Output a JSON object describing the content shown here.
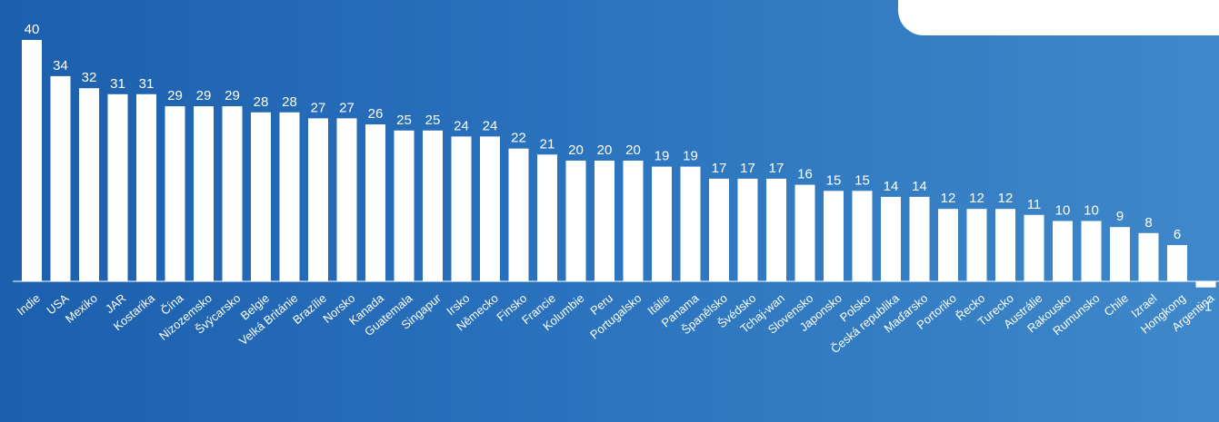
{
  "colors": {
    "background": "#2a72bd",
    "bars": "#ffffff"
  },
  "chart_data": {
    "type": "bar",
    "title": "",
    "xlabel": "",
    "ylabel": "",
    "grid": false,
    "ylim": [
      -1,
      40
    ],
    "categories": [
      "Indie",
      "USA",
      "Mexiko",
      "JAR",
      "Kostarika",
      "Čína",
      "Nizozemsko",
      "Švýcarsko",
      "Belgie",
      "Velká Británie",
      "Brazílie",
      "Norsko",
      "Kanada",
      "Guatemala",
      "Singapur",
      "Irsko",
      "Německo",
      "Finsko",
      "Francie",
      "Kolumbie",
      "Peru",
      "Portugalsko",
      "Itálie",
      "Panama",
      "Španělsko",
      "Švédsko",
      "Tchaj-wan",
      "Slovensko",
      "Japonsko",
      "Polsko",
      "Česká republika",
      "Maďarsko",
      "Portoriko",
      "Řecko",
      "Turecko",
      "Austrálie",
      "Rakousko",
      "Rumunsko",
      "Chile",
      "Izrael",
      "Hongkong",
      "Argentina"
    ],
    "values": [
      40,
      34,
      32,
      31,
      31,
      29,
      29,
      29,
      28,
      28,
      27,
      27,
      26,
      25,
      25,
      24,
      24,
      22,
      21,
      20,
      20,
      20,
      19,
      19,
      17,
      17,
      17,
      16,
      15,
      15,
      14,
      14,
      12,
      12,
      12,
      11,
      10,
      10,
      9,
      8,
      6,
      -1
    ]
  }
}
